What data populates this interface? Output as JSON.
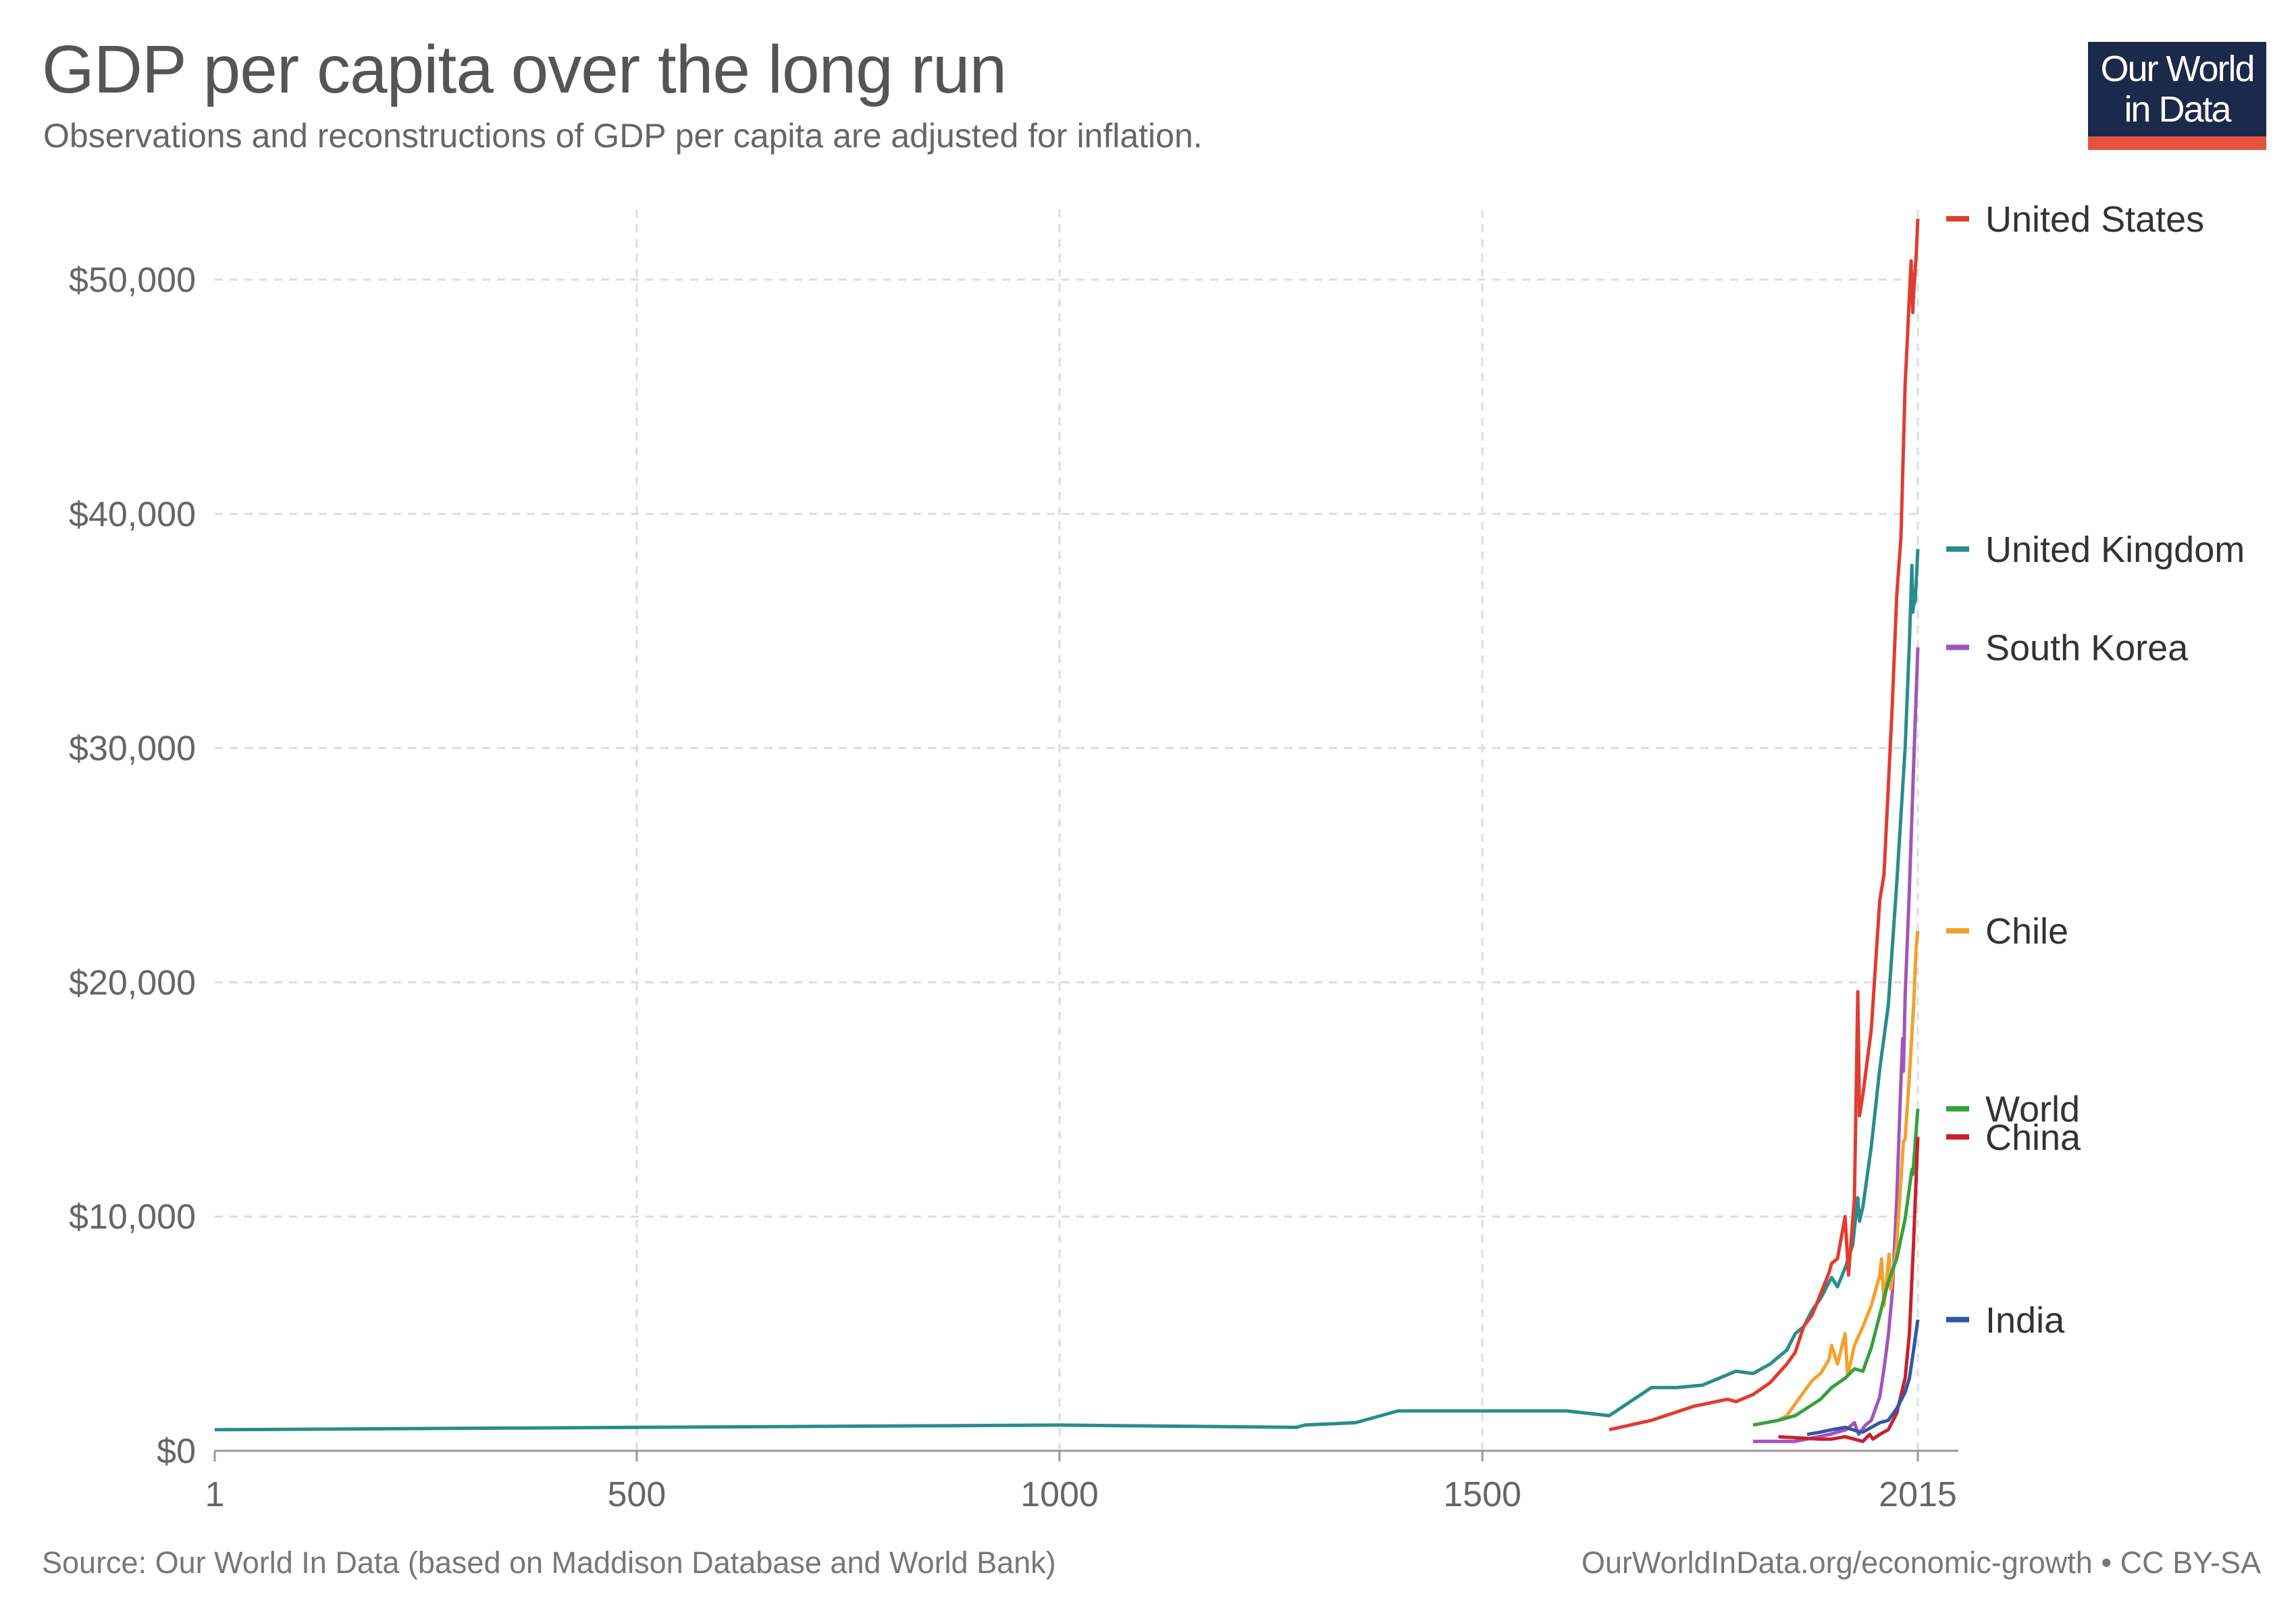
{
  "header": {
    "title": "GDP per capita over the long run",
    "subtitle": "Observations and reconstructions of GDP per capita are adjusted for inflation."
  },
  "logo": {
    "line1": "Our World",
    "line2": "in Data",
    "background": "#1b2a4a",
    "accent": "#e5533d"
  },
  "footer": {
    "source": "Source: Our World In Data (based on Maddison Database and World Bank)",
    "credit": "OurWorldInData.org/economic-growth • CC BY-SA"
  },
  "chart_data": {
    "type": "line",
    "title": "GDP per capita over the long run",
    "subtitle": "Observations and reconstructions of GDP per capita are adjusted for inflation.",
    "xlabel": "",
    "ylabel": "",
    "xlim": [
      1,
      2015
    ],
    "ylim": [
      0,
      53000
    ],
    "x_ticks": [
      {
        "value": 1,
        "label": "1"
      },
      {
        "value": 500,
        "label": "500"
      },
      {
        "value": 1000,
        "label": "1000"
      },
      {
        "value": 1500,
        "label": "1500"
      },
      {
        "value": 2015,
        "label": "2015"
      }
    ],
    "y_ticks": [
      {
        "value": 0,
        "label": "$0"
      },
      {
        "value": 10000,
        "label": "$10,000"
      },
      {
        "value": 20000,
        "label": "$20,000"
      },
      {
        "value": 30000,
        "label": "$30,000"
      },
      {
        "value": 40000,
        "label": "$40,000"
      },
      {
        "value": 50000,
        "label": "$50,000"
      }
    ],
    "grid": true,
    "legend": "right, labels at line ends",
    "series": [
      {
        "name": "United Kingdom",
        "color": "#2a8c8c",
        "label_y": 38500,
        "points": [
          [
            1,
            900
          ],
          [
            500,
            1000
          ],
          [
            1000,
            1100
          ],
          [
            1280,
            1000
          ],
          [
            1290,
            1100
          ],
          [
            1350,
            1200
          ],
          [
            1400,
            1700
          ],
          [
            1500,
            1700
          ],
          [
            1600,
            1700
          ],
          [
            1650,
            1500
          ],
          [
            1700,
            2700
          ],
          [
            1730,
            2700
          ],
          [
            1760,
            2800
          ],
          [
            1800,
            3400
          ],
          [
            1820,
            3300
          ],
          [
            1840,
            3700
          ],
          [
            1860,
            4300
          ],
          [
            1870,
            5000
          ],
          [
            1880,
            5300
          ],
          [
            1890,
            6000
          ],
          [
            1900,
            6500
          ],
          [
            1910,
            7200
          ],
          [
            1913,
            7400
          ],
          [
            1920,
            7000
          ],
          [
            1930,
            7900
          ],
          [
            1938,
            8800
          ],
          [
            1944,
            10800
          ],
          [
            1946,
            9800
          ],
          [
            1950,
            10400
          ],
          [
            1960,
            13000
          ],
          [
            1970,
            16300
          ],
          [
            1980,
            19000
          ],
          [
            1990,
            24200
          ],
          [
            2000,
            30000
          ],
          [
            2005,
            34500
          ],
          [
            2008,
            37800
          ],
          [
            2009,
            35800
          ],
          [
            2010,
            36100
          ],
          [
            2012,
            36300
          ],
          [
            2015,
            38500
          ]
        ]
      },
      {
        "name": "United States",
        "color": "#e03c31",
        "label_y": 52600,
        "points": [
          [
            1650,
            900
          ],
          [
            1700,
            1300
          ],
          [
            1750,
            1900
          ],
          [
            1790,
            2200
          ],
          [
            1800,
            2100
          ],
          [
            1820,
            2400
          ],
          [
            1840,
            2900
          ],
          [
            1860,
            3700
          ],
          [
            1870,
            4200
          ],
          [
            1880,
            5300
          ],
          [
            1890,
            5800
          ],
          [
            1900,
            6700
          ],
          [
            1910,
            7600
          ],
          [
            1913,
            8000
          ],
          [
            1920,
            8200
          ],
          [
            1929,
            10000
          ],
          [
            1933,
            7500
          ],
          [
            1940,
            10800
          ],
          [
            1944,
            19600
          ],
          [
            1946,
            14300
          ],
          [
            1950,
            15200
          ],
          [
            1960,
            18000
          ],
          [
            1970,
            23500
          ],
          [
            1975,
            24600
          ],
          [
            1980,
            28300
          ],
          [
            1985,
            32000
          ],
          [
            1990,
            36500
          ],
          [
            1995,
            39000
          ],
          [
            2000,
            45500
          ],
          [
            2007,
            50800
          ],
          [
            2009,
            48600
          ],
          [
            2010,
            49400
          ],
          [
            2013,
            51000
          ],
          [
            2015,
            52600
          ]
        ]
      },
      {
        "name": "South Korea",
        "color": "#a155b9",
        "label_y": 34300,
        "points": [
          [
            1820,
            400
          ],
          [
            1870,
            400
          ],
          [
            1911,
            700
          ],
          [
            1920,
            800
          ],
          [
            1930,
            900
          ],
          [
            1940,
            1200
          ],
          [
            1945,
            700
          ],
          [
            1953,
            1100
          ],
          [
            1960,
            1300
          ],
          [
            1970,
            2300
          ],
          [
            1975,
            3500
          ],
          [
            1980,
            4900
          ],
          [
            1985,
            6800
          ],
          [
            1990,
            10700
          ],
          [
            1995,
            15800
          ],
          [
            1997,
            17600
          ],
          [
            1998,
            16200
          ],
          [
            2000,
            19400
          ],
          [
            2005,
            24000
          ],
          [
            2010,
            29200
          ],
          [
            2015,
            34300
          ]
        ]
      },
      {
        "name": "Chile",
        "color": "#f4a12c",
        "label_y": 22200,
        "points": [
          [
            1850,
            1300
          ],
          [
            1860,
            1500
          ],
          [
            1870,
            2000
          ],
          [
            1880,
            2500
          ],
          [
            1890,
            3000
          ],
          [
            1900,
            3300
          ],
          [
            1910,
            3900
          ],
          [
            1913,
            4500
          ],
          [
            1920,
            3700
          ],
          [
            1929,
            5000
          ],
          [
            1932,
            3200
          ],
          [
            1940,
            4500
          ],
          [
            1950,
            5300
          ],
          [
            1960,
            6200
          ],
          [
            1970,
            7500
          ],
          [
            1972,
            8200
          ],
          [
            1975,
            6200
          ],
          [
            1981,
            8400
          ],
          [
            1983,
            6900
          ],
          [
            1990,
            8800
          ],
          [
            1998,
            13200
          ],
          [
            2000,
            13300
          ],
          [
            2005,
            16000
          ],
          [
            2010,
            19000
          ],
          [
            2013,
            21500
          ],
          [
            2015,
            22200
          ]
        ]
      },
      {
        "name": "World",
        "color": "#36a03f",
        "label_y": 14600,
        "points": [
          [
            1820,
            1100
          ],
          [
            1850,
            1300
          ],
          [
            1870,
            1500
          ],
          [
            1900,
            2200
          ],
          [
            1913,
            2700
          ],
          [
            1929,
            3100
          ],
          [
            1940,
            3500
          ],
          [
            1950,
            3400
          ],
          [
            1960,
            4400
          ],
          [
            1970,
            5800
          ],
          [
            1980,
            7200
          ],
          [
            1990,
            8200
          ],
          [
            2000,
            9900
          ],
          [
            2008,
            12000
          ],
          [
            2009,
            11800
          ],
          [
            2015,
            14600
          ]
        ]
      },
      {
        "name": "China",
        "color": "#c8202f",
        "label_y": 13400,
        "points": [
          [
            1850,
            600
          ],
          [
            1900,
            500
          ],
          [
            1913,
            500
          ],
          [
            1929,
            600
          ],
          [
            1950,
            400
          ],
          [
            1958,
            700
          ],
          [
            1962,
            500
          ],
          [
            1970,
            700
          ],
          [
            1980,
            900
          ],
          [
            1990,
            1600
          ],
          [
            2000,
            3100
          ],
          [
            2005,
            5000
          ],
          [
            2010,
            8900
          ],
          [
            2015,
            13400
          ]
        ]
      },
      {
        "name": "India",
        "color": "#2f58a6",
        "label_y": 5600,
        "points": [
          [
            1884,
            700
          ],
          [
            1900,
            800
          ],
          [
            1913,
            900
          ],
          [
            1929,
            1000
          ],
          [
            1947,
            800
          ],
          [
            1950,
            800
          ],
          [
            1960,
            1000
          ],
          [
            1970,
            1200
          ],
          [
            1980,
            1300
          ],
          [
            1990,
            1800
          ],
          [
            2000,
            2500
          ],
          [
            2005,
            3100
          ],
          [
            2010,
            4300
          ],
          [
            2015,
            5600
          ]
        ]
      }
    ]
  }
}
